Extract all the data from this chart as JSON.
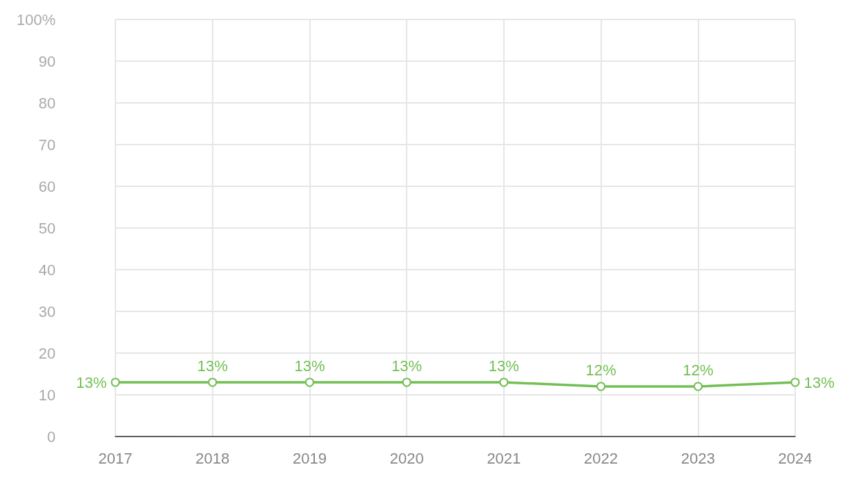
{
  "chart_data": {
    "type": "line",
    "categories": [
      "2017",
      "2018",
      "2019",
      "2020",
      "2021",
      "2022",
      "2023",
      "2024"
    ],
    "series": [
      {
        "color": "#72bf54",
        "values": [
          13,
          13,
          13,
          13,
          13,
          12,
          12,
          13
        ],
        "value_labels": [
          "13%",
          "13%",
          "13%",
          "13%",
          "13%",
          "12%",
          "12%",
          "13%"
        ]
      }
    ],
    "ylim": [
      0,
      100
    ],
    "yticks": [
      0,
      10,
      20,
      30,
      40,
      50,
      60,
      70,
      80,
      90,
      {
        "value": 100,
        "label": "100%"
      }
    ],
    "grid": true,
    "marker": "circle",
    "line_style": "solid"
  }
}
